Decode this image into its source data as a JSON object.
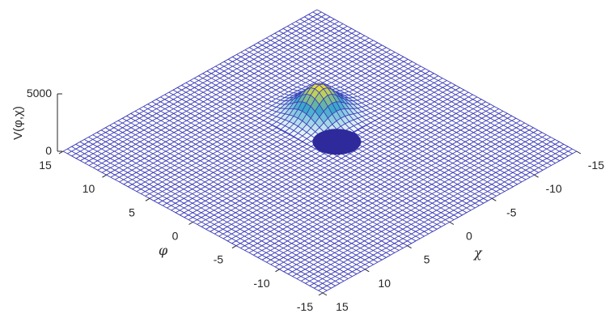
{
  "chart_data": {
    "type": "surface",
    "title": "",
    "x": {
      "label": "χ",
      "range": [
        -15,
        15
      ],
      "ticks": [
        -15,
        -10,
        -5,
        0,
        5,
        10,
        15
      ],
      "tick_labels": [
        "-15",
        "-10",
        "-5",
        "0",
        "5",
        "10",
        "15"
      ]
    },
    "y": {
      "label": "φ",
      "range": [
        -15,
        15
      ],
      "ticks": [
        -15,
        -10,
        -5,
        0,
        5,
        10,
        15
      ],
      "tick_labels": [
        "-15",
        "-10",
        "-5",
        "0",
        "5",
        "10",
        "15"
      ]
    },
    "z": {
      "label": "V(φ,χ)",
      "range": [
        0,
        5000
      ],
      "ticks": [
        0,
        5000
      ],
      "tick_labels": [
        "0",
        "5000"
      ]
    },
    "grid_points": 61,
    "peak": {
      "chi": -4,
      "phi": 4,
      "height": 2500,
      "width": 1.5
    },
    "marker": {
      "shape": "ellipse",
      "chi": -2,
      "phi": 0,
      "color": "#2e2a9c"
    },
    "colors": {
      "mesh": "#3b3bb8",
      "low": "#ffffff",
      "mid": "#3aa6c9",
      "high": "#f5e42a"
    }
  }
}
